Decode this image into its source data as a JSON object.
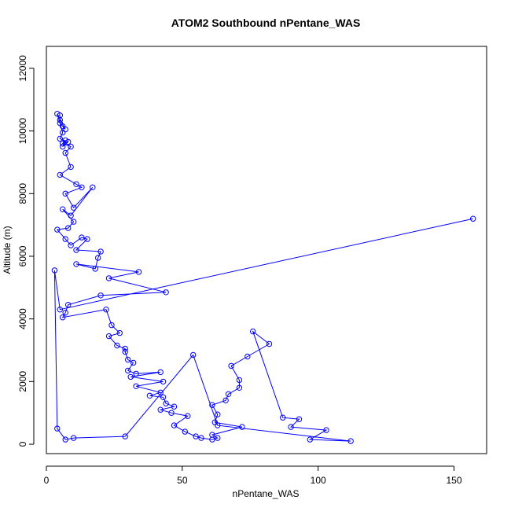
{
  "chart_data": {
    "type": "line",
    "title": "ATOM2 Southbound nPentane_WAS",
    "xlabel": "nPentane_WAS",
    "ylabel": "Altitude (m)",
    "xlim": [
      0,
      162
    ],
    "ylim": [
      -300,
      12700
    ],
    "x_ticks": [
      0,
      50,
      100,
      150
    ],
    "y_ticks": [
      0,
      2000,
      4000,
      6000,
      8000,
      10000,
      12000
    ],
    "grid": false,
    "series_color": "#0000ff",
    "markers": "open-circle",
    "series": [
      {
        "x": [
          5,
          5,
          5,
          6,
          7,
          4,
          6,
          5,
          8,
          6,
          7,
          6,
          9,
          7,
          9,
          5,
          11,
          13,
          7,
          10,
          17,
          9,
          6,
          10,
          8,
          4,
          7,
          9,
          13,
          15,
          11,
          20,
          19,
          18,
          11,
          34,
          23,
          44,
          20,
          8,
          7,
          6,
          22,
          24,
          27,
          23,
          26,
          29,
          29,
          30,
          32,
          30,
          33,
          42,
          31,
          43,
          33,
          42,
          38,
          43,
          44,
          47,
          42,
          46,
          52,
          47,
          51,
          55,
          57,
          61,
          63,
          61,
          72,
          62,
          63,
          61,
          66,
          67,
          71,
          71,
          68,
          74,
          82,
          76,
          87,
          93,
          90,
          103,
          97,
          112,
          63,
          54,
          29,
          10,
          7,
          4,
          3,
          5,
          157
        ],
        "y": [
          10500,
          10350,
          10250,
          10150,
          10050,
          10550,
          9950,
          9750,
          9650,
          9500,
          9700,
          9600,
          9500,
          9300,
          8850,
          8600,
          8300,
          8200,
          8000,
          7550,
          8200,
          7300,
          7500,
          7100,
          6900,
          6850,
          6550,
          6350,
          6600,
          6550,
          6200,
          6150,
          5950,
          5600,
          5750,
          5500,
          5300,
          4850,
          4750,
          4450,
          4200,
          4050,
          4300,
          3800,
          3550,
          3450,
          3150,
          3050,
          2950,
          2700,
          2600,
          2350,
          2250,
          2300,
          2150,
          2000,
          1850,
          1650,
          1550,
          1500,
          1300,
          1200,
          1100,
          1000,
          900,
          600,
          400,
          250,
          200,
          150,
          200,
          300,
          550,
          700,
          950,
          1250,
          1400,
          1600,
          1800,
          2050,
          2500,
          2800,
          3200,
          3600,
          850,
          800,
          550,
          450,
          150,
          100,
          600,
          2850,
          250,
          200,
          150,
          500,
          5550,
          4300,
          7200
        ]
      }
    ],
    "annotations": []
  }
}
